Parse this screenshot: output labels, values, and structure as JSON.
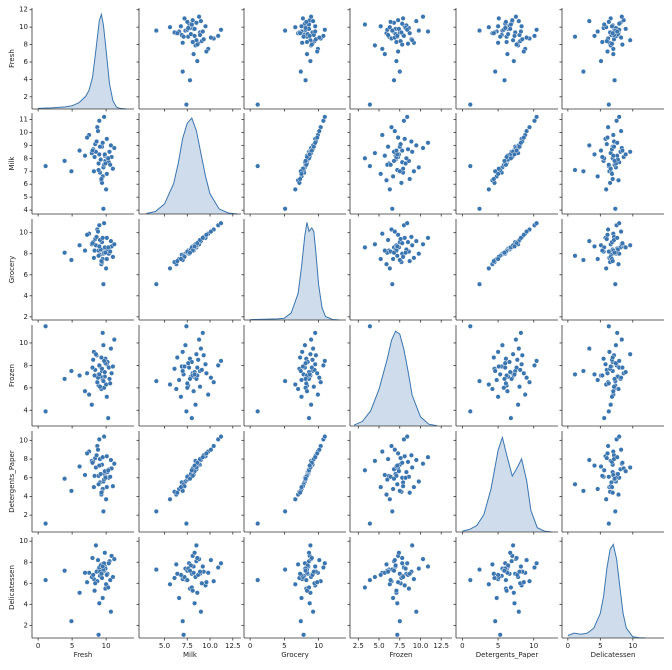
{
  "chart_data": {
    "type": "pairplot",
    "color": "#3b75af",
    "variables": [
      "Fresh",
      "Milk",
      "Grocery",
      "Frozen",
      "Detergents_Paper",
      "Delicatessen"
    ],
    "axes": [
      {
        "xlim": [
          -0.9,
          14.1
        ],
        "xticks": [
          0,
          5,
          10
        ],
        "ylim": [
          0.6,
          12.2
        ],
        "yticks": [
          2,
          4,
          6,
          8,
          10,
          12
        ],
        "density_ylim": [
          0,
          0.48
        ]
      },
      {
        "xlim": [
          2.2,
          13.4
        ],
        "xticks": [
          {
            "value": 5,
            "label": "5.0"
          },
          {
            "value": 7.5,
            "label": "7.5"
          },
          {
            "value": 10,
            "label": "10.0"
          },
          {
            "value": 12.5,
            "label": "12.5"
          }
        ],
        "ylim": [
          3.7,
          11.5
        ],
        "yticks": [
          4,
          5,
          6,
          7,
          8,
          9,
          10,
          11
        ],
        "density_ylim": [
          0,
          0.4
        ]
      },
      {
        "xlim": [
          -0.9,
          14.0
        ],
        "xticks": [
          0,
          5,
          10
        ],
        "ylim": [
          1.7,
          11.3
        ],
        "yticks": [
          2,
          4,
          6,
          8,
          10
        ],
        "density_ylim": [
          0,
          0.57
        ]
      },
      {
        "xlim": [
          1.5,
          13.8
        ],
        "xticks": [
          {
            "value": 2.5,
            "label": "2.5"
          },
          {
            "value": 5,
            "label": "5.0"
          },
          {
            "value": 7.5,
            "label": "7.5"
          },
          {
            "value": 10,
            "label": "10.0"
          },
          {
            "value": 12.5,
            "label": "12.5"
          }
        ],
        "ylim": [
          2.6,
          11.6
        ],
        "yticks": [
          4,
          6,
          8,
          10
        ],
        "density_ylim": [
          0,
          0.33
        ]
      },
      {
        "xlim": [
          -0.9,
          13.4
        ],
        "xticks": [
          0,
          5,
          10
        ],
        "ylim": [
          0.2,
          11.0
        ],
        "yticks": [
          2,
          4,
          6,
          8,
          10
        ],
        "density_ylim": [
          0,
          0.235
        ]
      },
      {
        "xlim": [
          -0.9,
          14.8
        ],
        "xticks": [
          0,
          5,
          10
        ],
        "ylim": [
          0.8,
          10.4
        ],
        "yticks": [
          2,
          4,
          6,
          8,
          10
        ],
        "density_ylim": [
          0,
          0.41
        ]
      }
    ],
    "values": [
      [
        9.4,
        8.9,
        10.1,
        9.8,
        8.2,
        10.5,
        9.1,
        7.5,
        9.9,
        10.8,
        8.7,
        9.6,
        6.1,
        9.3,
        10.2,
        8.4,
        9.7,
        11.2,
        8.9,
        9.0,
        7.9,
        10.4,
        9.5,
        8.6,
        1.1,
        9.8,
        10.0,
        8.1,
        9.2,
        10.7,
        6.9,
        9.4,
        8.8,
        9.9,
        10.3,
        7.2,
        9.6,
        8.5,
        11.0,
        9.1,
        4.9,
        9.7,
        10.1,
        8.3,
        9.5,
        10.6,
        8.0,
        9.3,
        3.9,
        9.0
      ],
      [
        8.9,
        7.6,
        9.5,
        8.2,
        7.0,
        8.5,
        6.9,
        9.8,
        7.8,
        8.1,
        10.4,
        7.3,
        8.6,
        6.3,
        8.0,
        9.1,
        7.5,
        8.8,
        7.1,
        10.9,
        8.4,
        7.7,
        6.6,
        9.3,
        7.4,
        8.3,
        5.6,
        8.7,
        7.9,
        9.0,
        8.2,
        6.1,
        10.1,
        7.6,
        8.0,
        9.6,
        4.1,
        8.5,
        7.2,
        8.9,
        7.0,
        11.2,
        6.8,
        8.1,
        9.2,
        7.5,
        8.6,
        6.4,
        7.8,
        8.3
      ],
      [
        9.1,
        8.3,
        9.5,
        8.5,
        7.6,
        8.6,
        7.9,
        9.9,
        8.2,
        8.7,
        10.3,
        8.0,
        8.8,
        7.0,
        8.4,
        9.4,
        8.1,
        8.9,
        7.8,
        10.7,
        8.9,
        8.0,
        7.5,
        9.6,
        1.1,
        8.6,
        6.6,
        9.1,
        8.4,
        9.2,
        8.3,
        7.2,
        10.1,
        8.1,
        8.6,
        9.8,
        5.1,
        8.8,
        7.7,
        9.3,
        7.4,
        10.9,
        7.5,
        8.3,
        9.5,
        8.2,
        9.0,
        7.3,
        8.1,
        8.7
      ],
      [
        7.5,
        6.2,
        8.1,
        7.0,
        9.2,
        6.8,
        7.9,
        5.4,
        8.6,
        7.3,
        6.5,
        9.8,
        7.1,
        5.9,
        8.3,
        7.6,
        6.0,
        10.3,
        7.2,
        8.0,
        4.5,
        7.8,
        6.7,
        8.9,
        3.9,
        7.4,
        6.3,
        8.5,
        7.0,
        9.5,
        5.7,
        7.7,
        6.9,
        8.2,
        3.3,
        7.3,
        6.6,
        9.0,
        7.9,
        6.1,
        7.5,
        8.4,
        5.2,
        7.1,
        10.9,
        6.4,
        7.8,
        8.7,
        6.8,
        7.2
      ],
      [
        7.4,
        6.2,
        8.3,
        6.4,
        5.0,
        6.9,
        5.5,
        8.8,
        6.1,
        7.0,
        9.4,
        5.6,
        7.2,
        4.2,
        6.6,
        8.1,
        5.8,
        7.5,
        5.3,
        10.1,
        7.8,
        6.0,
        4.8,
        8.4,
        1.1,
        6.7,
        3.7,
        7.7,
        6.4,
        7.9,
        6.3,
        4.5,
        9.0,
        6.0,
        6.8,
        8.6,
        2.4,
        7.1,
        5.1,
        8.0,
        4.6,
        10.4,
        5.0,
        6.2,
        8.2,
        6.1,
        7.6,
        4.4,
        5.9,
        7.3
      ],
      [
        6.9,
        7.3,
        5.8,
        7.6,
        6.4,
        8.1,
        6.7,
        7.0,
        5.5,
        8.6,
        6.2,
        7.4,
        5.1,
        7.8,
        6.9,
        6.0,
        7.2,
        8.3,
        1.1,
        7.5,
        6.6,
        7.9,
        4.6,
        7.1,
        6.3,
        8.9,
        5.9,
        6.8,
        7.7,
        3.3,
        7.0,
        6.5,
        8.2,
        7.4,
        5.6,
        6.1,
        7.3,
        9.6,
        6.6,
        7.1,
        2.4,
        7.9,
        6.8,
        5.3,
        7.6,
        6.3,
        8.4,
        6.9,
        7.2,
        4.1
      ]
    ],
    "kde": [
      {
        "x": [
          0,
          2,
          4,
          5,
          6,
          7,
          7.5,
          8,
          8.5,
          9,
          9.3,
          9.6,
          10,
          10.5,
          11,
          11.5,
          12,
          13
        ],
        "y": [
          0.003,
          0.005,
          0.01,
          0.015,
          0.03,
          0.06,
          0.09,
          0.15,
          0.28,
          0.42,
          0.45,
          0.4,
          0.28,
          0.12,
          0.04,
          0.01,
          0.003,
          0
        ]
      },
      {
        "x": [
          3,
          4,
          5,
          6,
          6.5,
          7,
          7.5,
          8,
          8.5,
          9,
          9.5,
          10,
          11,
          12,
          13
        ],
        "y": [
          0.002,
          0.01,
          0.04,
          0.12,
          0.2,
          0.3,
          0.36,
          0.38,
          0.33,
          0.24,
          0.15,
          0.08,
          0.02,
          0.004,
          0
        ]
      },
      {
        "x": [
          0,
          2,
          4,
          5,
          6,
          7,
          7.5,
          8,
          8.3,
          8.6,
          9,
          9.3,
          9.6,
          10,
          10.5,
          11,
          12,
          13
        ],
        "y": [
          0.002,
          0.004,
          0.006,
          0.01,
          0.04,
          0.15,
          0.3,
          0.48,
          0.55,
          0.5,
          0.52,
          0.5,
          0.38,
          0.2,
          0.07,
          0.02,
          0.003,
          0
        ]
      },
      {
        "x": [
          2,
          3,
          4,
          5,
          6,
          6.5,
          7,
          7.5,
          8,
          8.5,
          9,
          10,
          11,
          12
        ],
        "y": [
          0.003,
          0.015,
          0.05,
          0.12,
          0.22,
          0.28,
          0.31,
          0.3,
          0.25,
          0.18,
          0.1,
          0.03,
          0.006,
          0.001
        ]
      },
      {
        "x": [
          0,
          1,
          2,
          3,
          4,
          5,
          5.6,
          6.2,
          7,
          7.7,
          8.3,
          9,
          9.6,
          10.5,
          11.5,
          12.5
        ],
        "y": [
          0.002,
          0.006,
          0.015,
          0.04,
          0.1,
          0.19,
          0.22,
          0.18,
          0.13,
          0.15,
          0.17,
          0.12,
          0.05,
          0.01,
          0.002,
          0
        ]
      },
      {
        "x": [
          0,
          1,
          2,
          3,
          4,
          5,
          5.5,
          6,
          6.5,
          7,
          7.5,
          8,
          8.5,
          9,
          10,
          11,
          12
        ],
        "y": [
          0.01,
          0.02,
          0.015,
          0.02,
          0.04,
          0.1,
          0.17,
          0.28,
          0.36,
          0.38,
          0.32,
          0.21,
          0.1,
          0.04,
          0.005,
          0.001,
          0
        ]
      }
    ]
  }
}
